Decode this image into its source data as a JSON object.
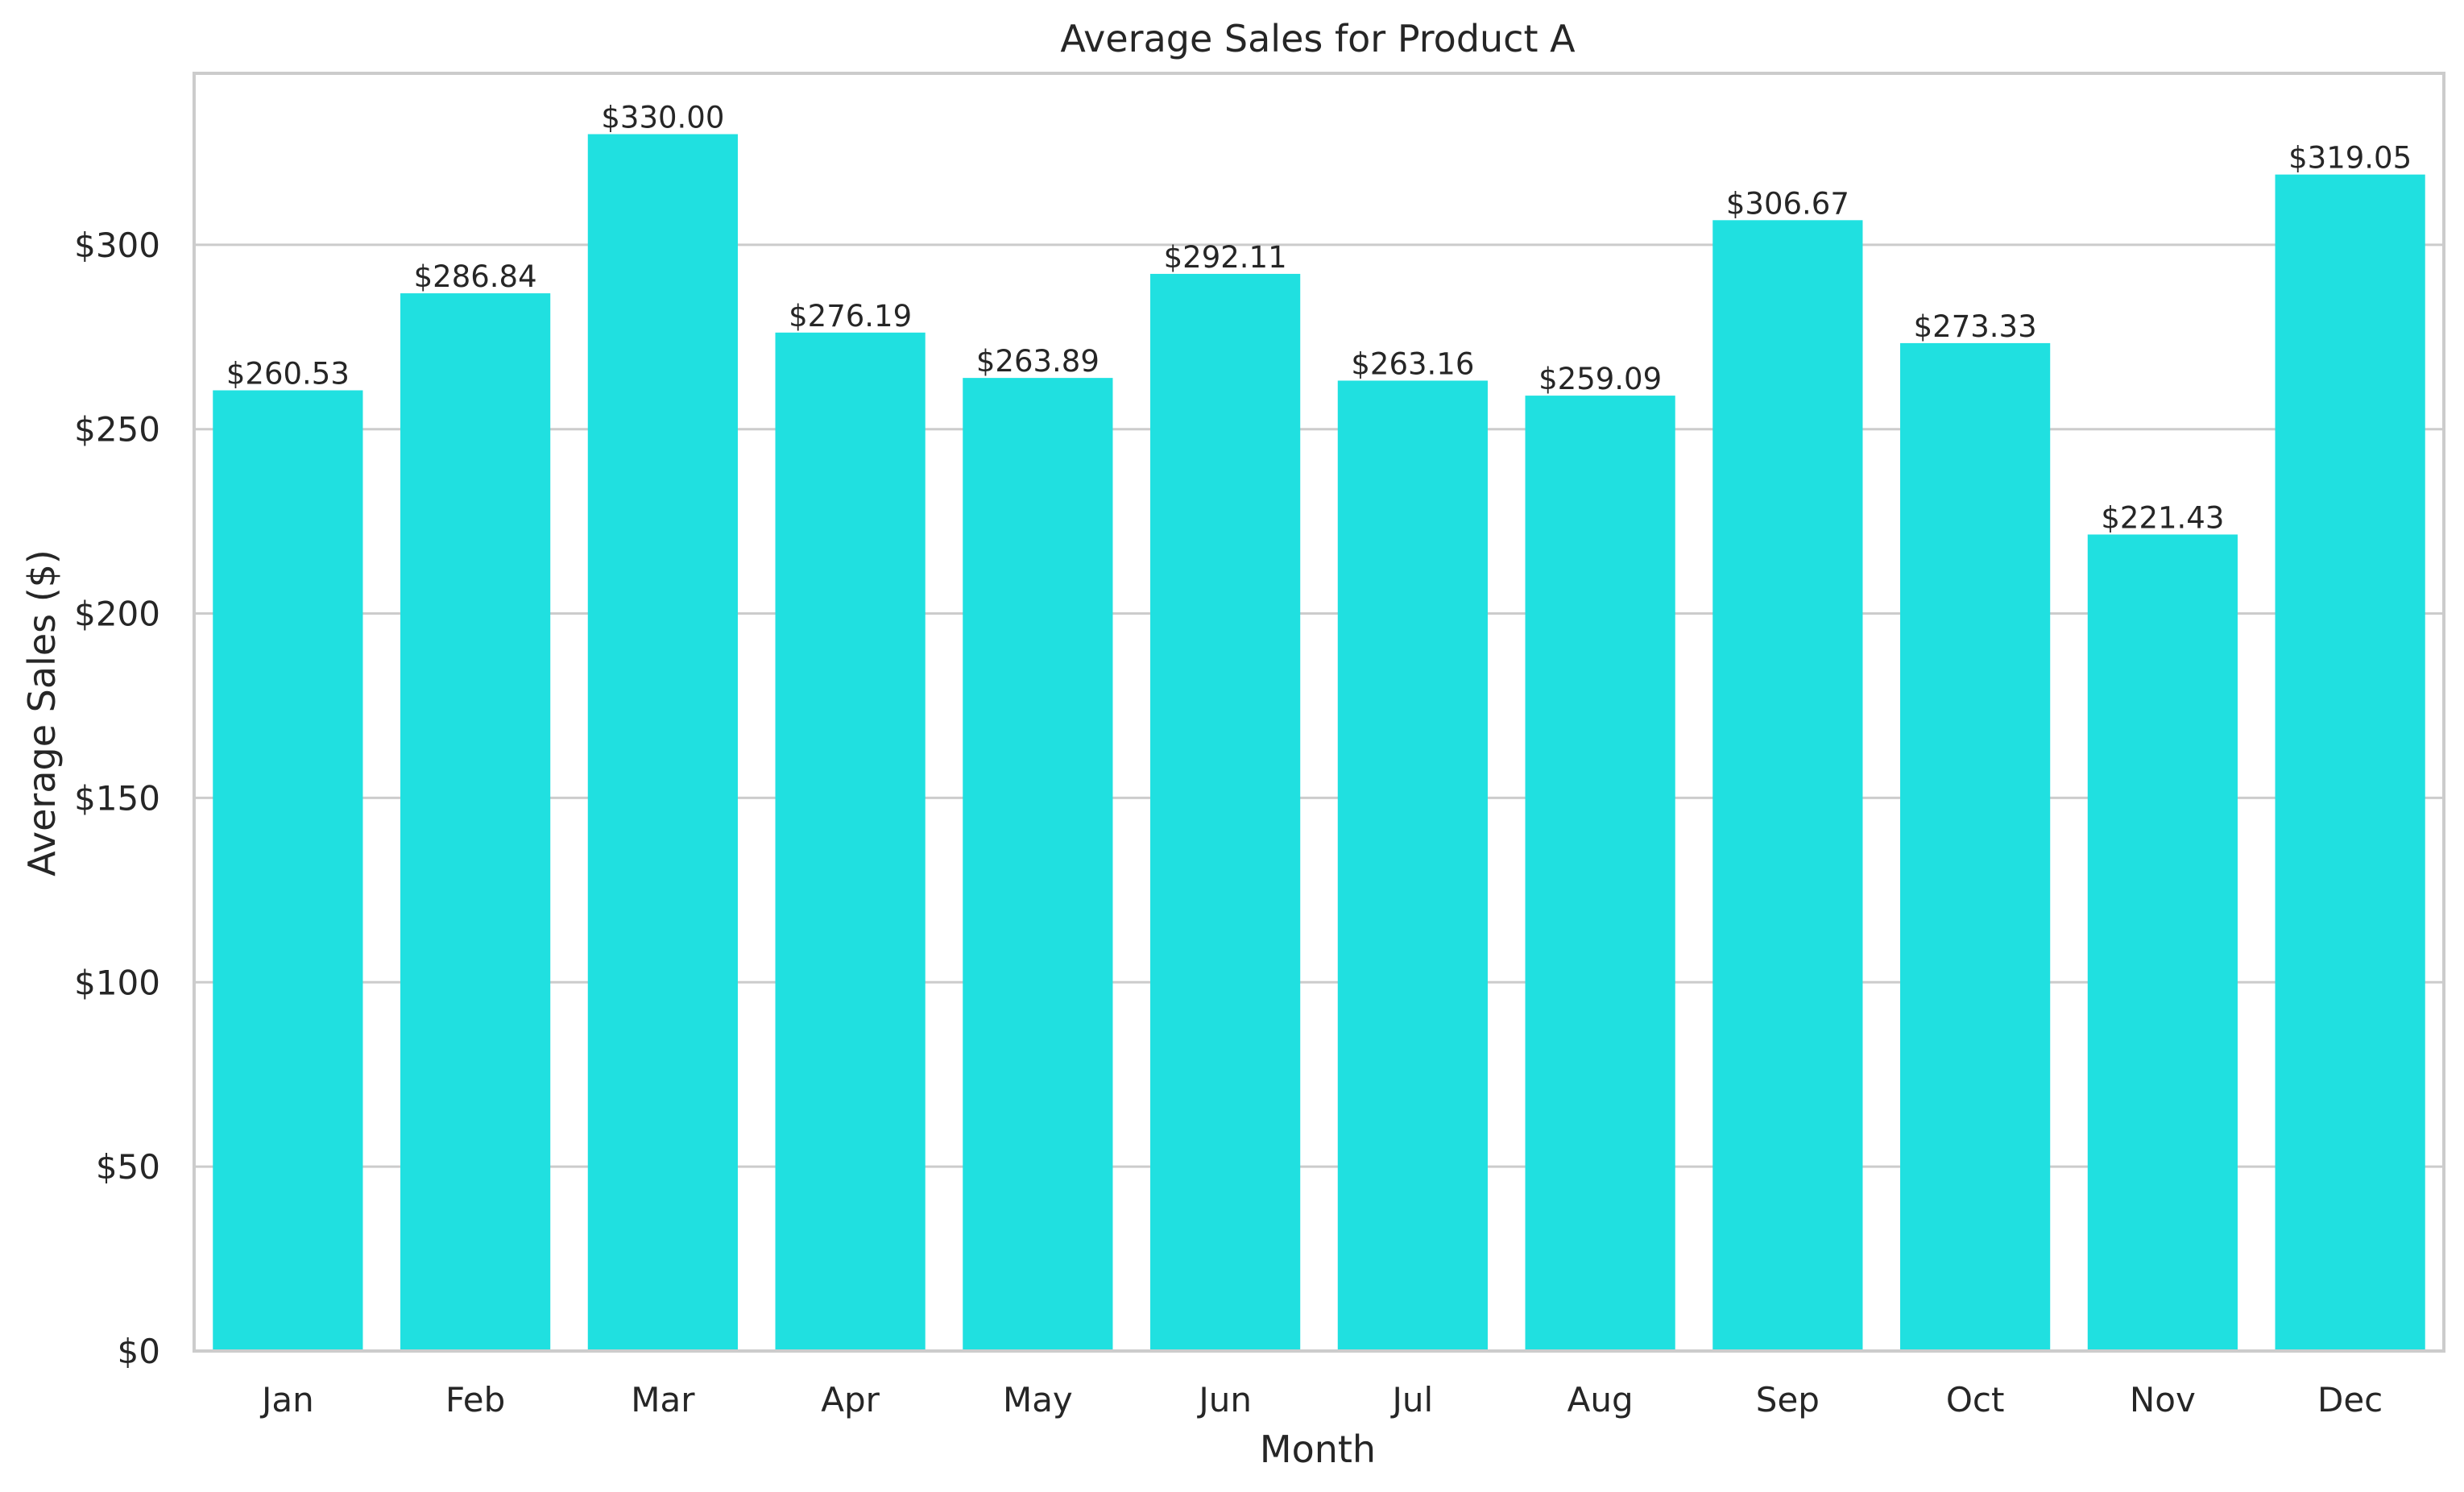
{
  "chart_data": {
    "type": "bar",
    "title": "Average Sales for Product A",
    "xlabel": "Month",
    "ylabel": "Average Sales ($)",
    "categories": [
      "Jan",
      "Feb",
      "Mar",
      "Apr",
      "May",
      "Jun",
      "Jul",
      "Aug",
      "Sep",
      "Oct",
      "Nov",
      "Dec"
    ],
    "values": [
      260.53,
      286.84,
      330.0,
      276.19,
      263.89,
      292.11,
      263.16,
      259.09,
      306.67,
      273.33,
      221.43,
      319.05
    ],
    "data_labels": [
      "$260.53",
      "$286.84",
      "$330.00",
      "$276.19",
      "$263.89",
      "$292.11",
      "$263.16",
      "$259.09",
      "$306.67",
      "$273.33",
      "$221.43",
      "$319.05"
    ],
    "yticks": [
      0,
      50,
      100,
      150,
      200,
      250,
      300
    ],
    "ytick_labels": [
      "$0",
      "$50",
      "$100",
      "$150",
      "$200",
      "$250",
      "$300"
    ],
    "ylim": [
      0,
      346.5
    ],
    "grid": "y",
    "colors": {
      "bar": "#20e0e0",
      "grid": "#cccccc",
      "frame": "#cccccc",
      "text": "#262626"
    }
  }
}
